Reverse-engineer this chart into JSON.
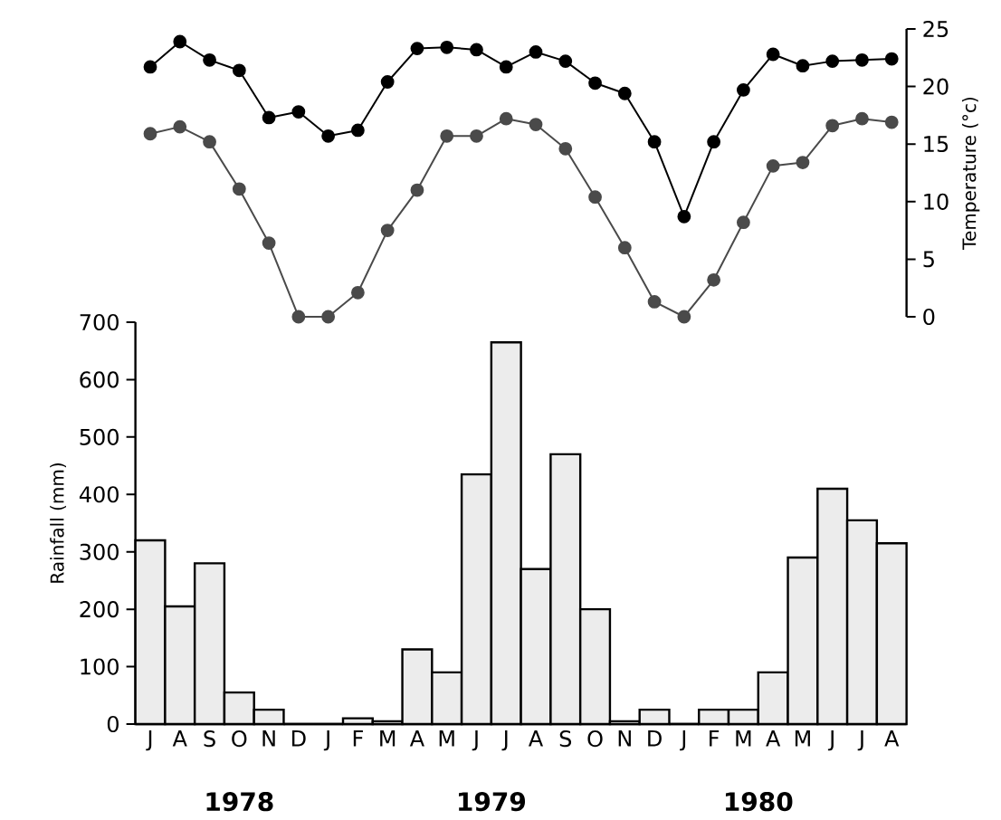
{
  "chart_data": [
    {
      "type": "line",
      "ylabel": "Temperature (°c)",
      "categories": [
        null,
        null,
        null,
        null,
        null,
        null,
        null,
        null,
        null,
        null,
        null,
        null,
        null,
        null,
        null,
        null,
        null,
        null,
        null,
        null,
        null,
        null,
        null,
        null,
        null,
        null
      ],
      "tick_labels": "y",
      "ylim": [
        0,
        25
      ],
      "yticks": [
        0,
        5,
        10,
        15,
        20,
        25
      ],
      "marker": "circle",
      "series": [
        {
          "color": "#000000",
          "values": [
            21.7,
            23.9,
            22.3,
            21.4,
            17.3,
            17.8,
            15.7,
            16.2,
            20.4,
            23.3,
            23.4,
            23.2,
            21.7,
            23.0,
            22.2,
            20.3,
            19.4,
            15.2,
            8.7,
            15.2,
            19.7,
            22.8,
            21.8,
            22.2,
            22.3,
            22.4
          ]
        },
        {
          "color": "#4a4a4a",
          "values": [
            15.9,
            16.5,
            15.2,
            11.1,
            6.4,
            0,
            0,
            2.1,
            7.5,
            11.0,
            15.7,
            15.7,
            17.2,
            16.7,
            14.6,
            10.4,
            6.0,
            1.3,
            0,
            3.2,
            8.2,
            13.1,
            13.4,
            16.6,
            17.2,
            16.9
          ]
        }
      ]
    },
    {
      "type": "bar",
      "ylabel": "Rainfall (mm)",
      "categories": [
        "J",
        "A",
        "S",
        "O",
        "N",
        "D",
        "J",
        "F",
        "M",
        "A",
        "M",
        "J",
        "J",
        "A",
        "S",
        "O",
        "N",
        "D",
        "J",
        "F",
        "M",
        "A",
        "M",
        "J",
        "J",
        "A"
      ],
      "ylim": [
        0,
        700
      ],
      "yticks": [
        0,
        100,
        200,
        300,
        400,
        500,
        600,
        700
      ],
      "color": "#ececec",
      "values": [
        320,
        205,
        280,
        55,
        25,
        0,
        0,
        10,
        5,
        130,
        90,
        435,
        665,
        270,
        470,
        200,
        5,
        25,
        0,
        25,
        25,
        90,
        290,
        410,
        355,
        315
      ],
      "annotations": [
        "1978",
        "1979",
        "1980"
      ]
    }
  ]
}
